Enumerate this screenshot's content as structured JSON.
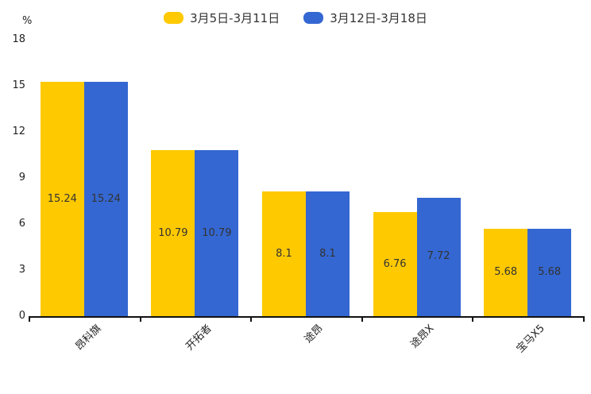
{
  "chart_data": {
    "type": "bar",
    "title": "",
    "unit_label": "%",
    "categories": [
      "昂科旗",
      "开拓者",
      "途昂",
      "途昂X",
      "宝马X5"
    ],
    "series": [
      {
        "name": "3月5日-3月11日",
        "color": "#FFC900",
        "values": [
          15.24,
          10.79,
          8.1,
          6.76,
          5.68
        ]
      },
      {
        "name": "3月12日-3月18日",
        "color": "#3467D1",
        "values": [
          15.24,
          10.79,
          8.1,
          7.72,
          5.68
        ]
      }
    ],
    "y_ticks": [
      0,
      3,
      6,
      9,
      12,
      15,
      18
    ],
    "ylim": [
      0,
      18
    ],
    "legend_position": "top",
    "grid": false,
    "bar_labels_shown": true,
    "bar_label_color": "#333333",
    "axis_color": "#111111",
    "tick_label_color": "#222222",
    "background_color": "#ffffff"
  }
}
